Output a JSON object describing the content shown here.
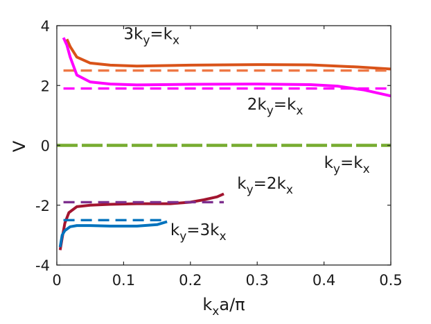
{
  "chart_data": {
    "type": "line",
    "xlabel": {
      "base": "k",
      "sub": "x",
      "tail": "a/π"
    },
    "ylabel": "V",
    "xlim": [
      0,
      0.5
    ],
    "ylim": [
      -4,
      4
    ],
    "xticks": [
      0,
      0.1,
      0.2,
      0.3,
      0.4,
      0.5
    ],
    "xtick_labels": [
      "0",
      "0.1",
      "0.2",
      "0.3",
      "0.4",
      "0.5"
    ],
    "yticks": [
      -4,
      -2,
      0,
      2,
      4
    ],
    "ytick_labels": [
      "-4",
      "-2",
      "0",
      "2",
      "4"
    ],
    "series": [
      {
        "name": "3ky=kx",
        "color": "#d95319",
        "label": {
          "p1": "3k",
          "s1": "y",
          "p2": "=k",
          "s2": "x"
        },
        "label_anchor": [
          0.1,
          3.55
        ],
        "x": [
          0.015,
          0.02,
          0.03,
          0.05,
          0.08,
          0.12,
          0.2,
          0.3,
          0.38,
          0.45,
          0.5
        ],
        "y": [
          3.55,
          3.3,
          2.95,
          2.75,
          2.68,
          2.65,
          2.68,
          2.7,
          2.69,
          2.62,
          2.55
        ]
      },
      {
        "name": "3ky=kx asymptote",
        "color": "#ee7744",
        "dashed": true,
        "x": [
          0.01,
          0.5
        ],
        "y": [
          2.5,
          2.5
        ]
      },
      {
        "name": "2ky=kx",
        "color": "#ff00ff",
        "label": {
          "p1": "2k",
          "s1": "y",
          "p2": "=k",
          "s2": "x"
        },
        "label_anchor": [
          0.285,
          1.2
        ],
        "x": [
          0.01,
          0.015,
          0.02,
          0.03,
          0.05,
          0.08,
          0.12,
          0.2,
          0.3,
          0.38,
          0.42,
          0.46,
          0.5
        ],
        "y": [
          3.6,
          3.35,
          2.95,
          2.35,
          2.12,
          2.05,
          2.02,
          2.04,
          2.05,
          2.03,
          1.98,
          1.85,
          1.65
        ]
      },
      {
        "name": "2ky=kx asymptote",
        "color": "#ff00ff",
        "dashed": true,
        "x": [
          0.01,
          0.5
        ],
        "y": [
          1.9,
          1.9
        ]
      },
      {
        "name": "ky=kx",
        "color": "#77ac30",
        "label": {
          "p1": "k",
          "s1": "y",
          "p2": "=k",
          "s2": "x"
        },
        "label_anchor": [
          0.4,
          -0.75
        ],
        "x": [
          0.0,
          0.5
        ],
        "y": [
          0.0,
          0.0
        ]
      },
      {
        "name": "ky=2kx",
        "color": "#a2142f",
        "label": {
          "p1": "k",
          "s1": "y",
          "p2": "=2k",
          "s2": "x"
        },
        "label_anchor": [
          0.27,
          -1.45
        ],
        "x": [
          0.005,
          0.008,
          0.012,
          0.018,
          0.03,
          0.05,
          0.08,
          0.12,
          0.17,
          0.2,
          0.22,
          0.24,
          0.25
        ],
        "y": [
          -3.5,
          -3.1,
          -2.6,
          -2.25,
          -2.05,
          -2.0,
          -1.97,
          -1.95,
          -1.95,
          -1.9,
          -1.82,
          -1.72,
          -1.62
        ]
      },
      {
        "name": "ky=2kx asymptote",
        "color": "#7e2f8e",
        "dashed": true,
        "x": [
          0.01,
          0.25
        ],
        "y": [
          -1.9,
          -1.9
        ]
      },
      {
        "name": "ky=3kx",
        "color": "#0072bd",
        "label": {
          "p1": "k",
          "s1": "y",
          "p2": "=3k",
          "s2": "x"
        },
        "label_anchor": [
          0.17,
          -3.0
        ],
        "x": [
          0.005,
          0.008,
          0.012,
          0.02,
          0.03,
          0.05,
          0.08,
          0.12,
          0.15,
          0.165
        ],
        "y": [
          -3.4,
          -3.0,
          -2.85,
          -2.72,
          -2.68,
          -2.68,
          -2.7,
          -2.7,
          -2.65,
          -2.55
        ]
      },
      {
        "name": "ky=3kx asymptote",
        "color": "#0072bd",
        "dashed": true,
        "x": [
          0.01,
          0.165
        ],
        "y": [
          -2.5,
          -2.5
        ]
      }
    ]
  }
}
